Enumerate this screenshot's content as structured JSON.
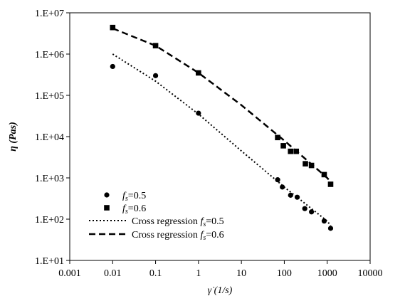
{
  "chart_data": {
    "type": "scatter",
    "title": "",
    "xlabel": "γ̇ (1/s)",
    "ylabel": "η (Pas)",
    "x_scale": "log",
    "y_scale": "log",
    "xlim": [
      0.001,
      10000
    ],
    "ylim": [
      10,
      10000000
    ],
    "x_ticks": [
      "0.001",
      "0.01",
      "0.1",
      "1",
      "10",
      "100",
      "1000",
      "10000"
    ],
    "y_ticks": [
      "1.E+01",
      "1.E+02",
      "1.E+03",
      "1.E+04",
      "1.E+05",
      "1.E+06",
      "1.E+07"
    ],
    "grid": false,
    "legend_position": "bottom-left",
    "series": [
      {
        "name_prefix": "f",
        "name_sub": "s",
        "name_suffix": "=0.5",
        "kind": "points",
        "marker": "circle",
        "x": [
          0.01,
          0.1,
          1,
          70,
          90,
          140,
          200,
          300,
          430,
          850,
          1200
        ],
        "y": [
          500000,
          300000,
          37000,
          900,
          600,
          380,
          340,
          180,
          150,
          90,
          60
        ]
      },
      {
        "name_prefix": "f",
        "name_sub": "s",
        "name_suffix": "=0.6",
        "kind": "points",
        "marker": "square",
        "x": [
          0.01,
          0.1,
          1,
          70,
          95,
          140,
          190,
          310,
          430,
          850,
          1200
        ],
        "y": [
          4400000,
          1600000,
          350000,
          9500,
          6000,
          4400,
          4400,
          2200,
          2000,
          1200,
          700
        ]
      },
      {
        "name_prefix": "Cross regression f",
        "name_sub": "s",
        "name_suffix": "=0.5",
        "kind": "line",
        "dash": "dotted",
        "x": [
          0.01,
          0.1,
          1,
          10,
          100,
          1000,
          1200
        ],
        "y": [
          1000000,
          220000,
          35000,
          4500,
          600,
          90,
          70
        ]
      },
      {
        "name_prefix": "Cross regression f",
        "name_sub": "s",
        "name_suffix": "=0.6",
        "kind": "line",
        "dash": "dashed",
        "x": [
          0.01,
          0.1,
          1,
          10,
          100,
          1000,
          1200
        ],
        "y": [
          4200000,
          1600000,
          350000,
          58000,
          8000,
          1000,
          800
        ]
      }
    ]
  }
}
